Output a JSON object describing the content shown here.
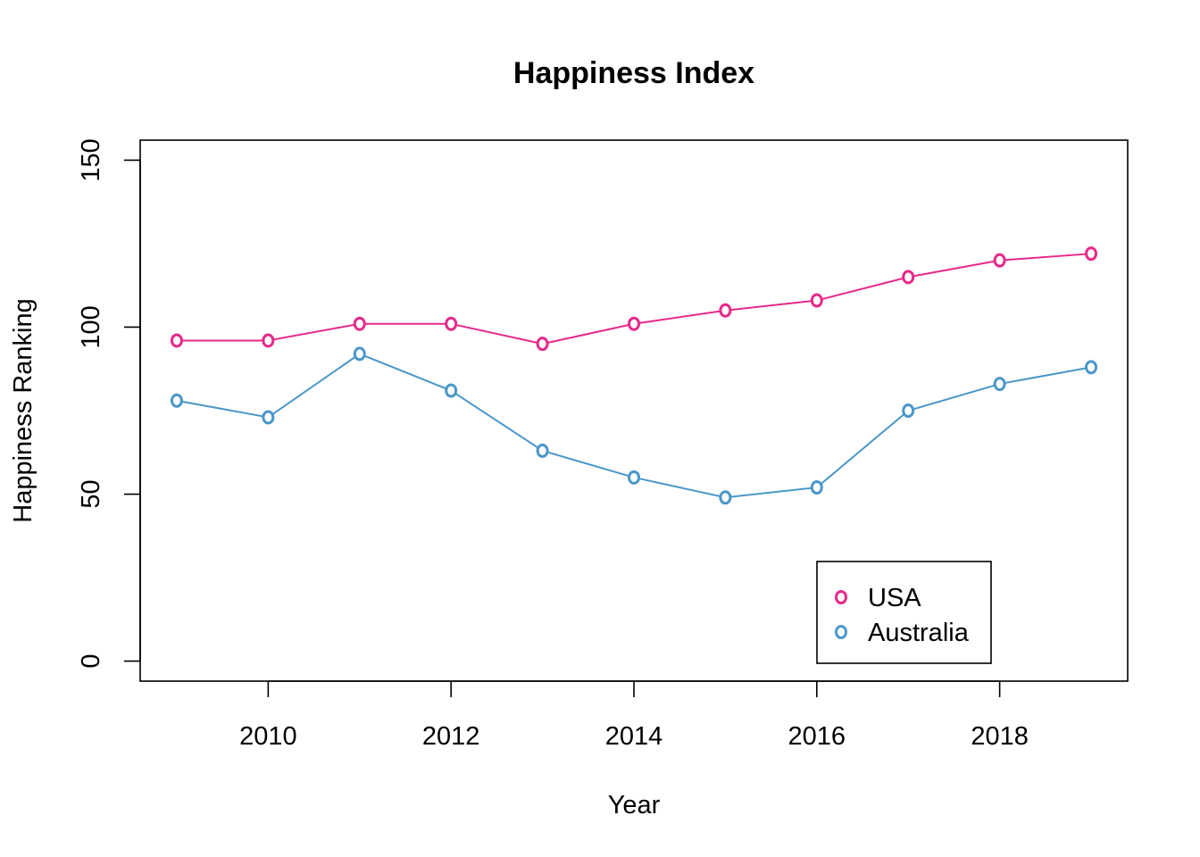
{
  "chart_data": {
    "type": "line",
    "title": "Happiness Index",
    "xlabel": "Year",
    "ylabel": "Happiness Ranking",
    "x": [
      2009,
      2010,
      2011,
      2012,
      2013,
      2014,
      2015,
      2016,
      2017,
      2018,
      2019
    ],
    "xlim": [
      2008.6,
      2019.4
    ],
    "ylim": [
      -6,
      156
    ],
    "xticks": [
      2010,
      2012,
      2014,
      2016,
      2018
    ],
    "yticks": [
      0,
      50,
      100,
      150
    ],
    "grid": false,
    "legend_position": "bottom-right",
    "series": [
      {
        "name": "USA",
        "color": "#e7298a",
        "values": [
          96,
          96,
          101,
          101,
          95,
          101,
          105,
          108,
          115,
          120,
          122
        ]
      },
      {
        "name": "Australia",
        "color": "#4b97c9",
        "values": [
          78,
          73,
          92,
          81,
          63,
          55,
          49,
          52,
          75,
          83,
          88
        ]
      }
    ]
  }
}
